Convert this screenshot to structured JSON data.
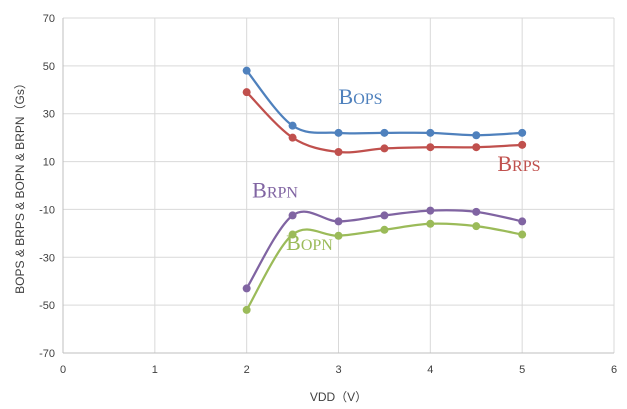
{
  "chart_data": {
    "type": "line",
    "title": "",
    "xlabel": "VDD（V）",
    "ylabel": "BOPS & BRPS & BOPN & BRPN（Gs）",
    "xlim": [
      0,
      6
    ],
    "ylim": [
      -70,
      70
    ],
    "xticks": [
      0,
      1,
      2,
      3,
      4,
      5,
      6
    ],
    "yticks": [
      -70,
      -50,
      -30,
      -10,
      10,
      30,
      50,
      70
    ],
    "grid": true,
    "legend": "none",
    "series": [
      {
        "name": "BOPS",
        "base": "B",
        "sub": "OPS",
        "color": "#4f81bd",
        "label_at": [
          3.0,
          34
        ],
        "x": [
          2,
          2.5,
          3,
          3.5,
          4,
          4.5,
          5
        ],
        "values": [
          48,
          25,
          22,
          22,
          22,
          21,
          22
        ]
      },
      {
        "name": "BRPS",
        "base": "B",
        "sub": "RPS",
        "color": "#c0504d",
        "label_at": [
          4.73,
          6
        ],
        "x": [
          2,
          2.5,
          3,
          3.5,
          4,
          4.5,
          5
        ],
        "values": [
          39,
          20,
          14,
          15.5,
          16,
          16,
          17
        ]
      },
      {
        "name": "BRPN",
        "base": "B",
        "sub": "RPN",
        "color": "#8064a2",
        "label_at": [
          2.06,
          -5
        ],
        "x": [
          2,
          2.5,
          3,
          3.5,
          4,
          4.5,
          5
        ],
        "values": [
          -43,
          -12.5,
          -15,
          -12.5,
          -10.5,
          -11,
          -15
        ]
      },
      {
        "name": "BOPN",
        "base": "B",
        "sub": "OPN",
        "color": "#9bbb59",
        "label_at": [
          2.43,
          -27
        ],
        "x": [
          2,
          2.5,
          3,
          3.5,
          4,
          4.5,
          5
        ],
        "values": [
          -52,
          -20.5,
          -21,
          -18.5,
          -16,
          -17,
          -20.5
        ]
      }
    ]
  }
}
